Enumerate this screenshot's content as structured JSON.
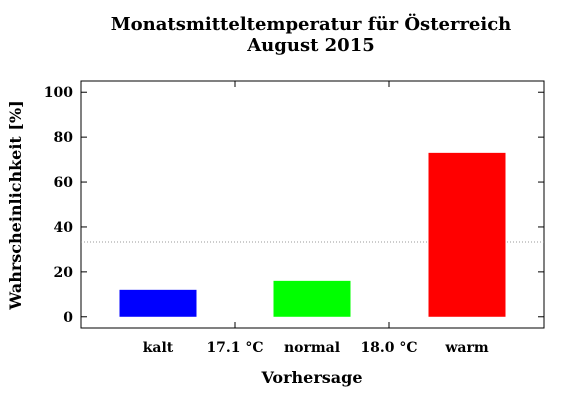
{
  "chart_data": {
    "type": "bar",
    "title_line1": "Monatsmitteltemperatur für Österreich",
    "title_line2": "August 2015",
    "xlabel": "Vorhersage",
    "ylabel": "Wahrscheinlichkeit [%]",
    "ylim": [
      -5,
      105
    ],
    "yticks": [
      "0",
      "20",
      "40",
      "60",
      "80",
      "100"
    ],
    "categories": [
      "kalt",
      "normal",
      "warm"
    ],
    "values": [
      12,
      16,
      73
    ],
    "colors": [
      "#0000ff",
      "#00ff00",
      "#ff0000"
    ],
    "thresholds": [
      "17.1 °C",
      "18.0 °C"
    ],
    "reference_line": 33.3,
    "grid": false
  }
}
